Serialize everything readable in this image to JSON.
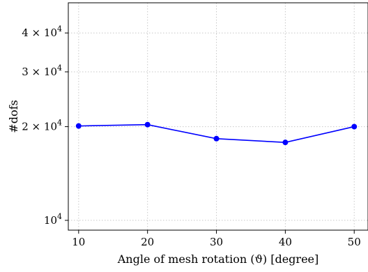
{
  "chart_data": {
    "type": "line",
    "xlabel": "Angle of mesh rotation (ϑ) [degree]",
    "ylabel": "#dofs",
    "y_scale": "log",
    "x": [
      10,
      20,
      30,
      40,
      50
    ],
    "series": [
      {
        "values": [
          20100,
          20300,
          18300,
          17800,
          20000
        ],
        "color": "#0000ff"
      }
    ],
    "xlim": [
      8.5,
      52
    ],
    "ylim": [
      9300,
      50000
    ],
    "x_ticks": [
      {
        "value": 10,
        "label": "10"
      },
      {
        "value": 20,
        "label": "20"
      },
      {
        "value": 30,
        "label": "30"
      },
      {
        "value": 40,
        "label": "40"
      },
      {
        "value": 50,
        "label": "50"
      }
    ],
    "y_ticks": [
      {
        "value": 10000,
        "mantissa": "",
        "base": "10",
        "exp": "4"
      },
      {
        "value": 20000,
        "mantissa": "2 × ",
        "base": "10",
        "exp": "4"
      },
      {
        "value": 30000,
        "mantissa": "3 × ",
        "base": "10",
        "exp": "4"
      },
      {
        "value": 40000,
        "mantissa": "4 × ",
        "base": "10",
        "exp": "4"
      }
    ],
    "grid": true,
    "grid_style": "dotted"
  }
}
